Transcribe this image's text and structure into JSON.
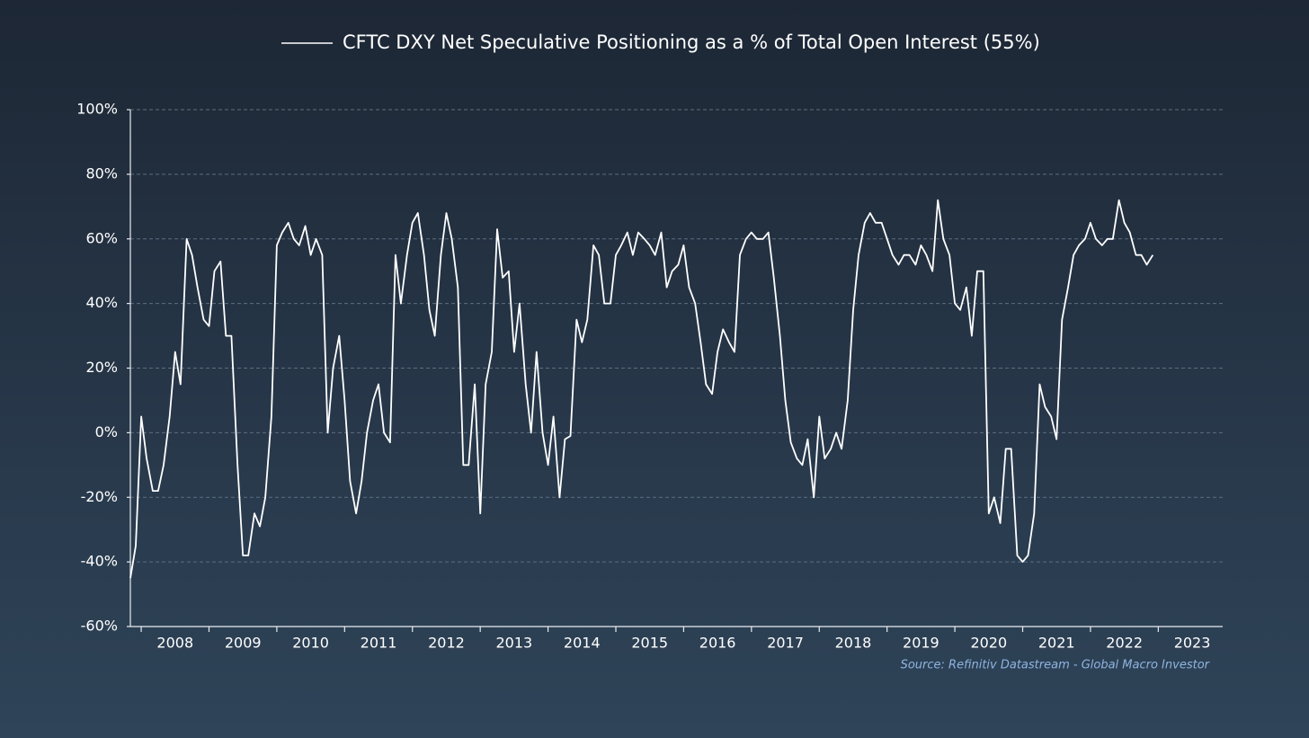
{
  "chart_data": {
    "type": "line",
    "series": [
      {
        "name": "CFTC DXY Net Speculative Positioning as a % of Total Open Interest (55%)",
        "color": "#ffffff",
        "values": [
          -45,
          -35,
          5,
          -8,
          -18,
          -18,
          -10,
          5,
          25,
          15,
          60,
          55,
          45,
          35,
          33,
          50,
          53,
          30,
          30,
          -10,
          -38,
          -38,
          -25,
          -29,
          -20,
          5,
          58,
          62,
          65,
          60,
          58,
          64,
          55,
          60,
          55,
          0,
          20,
          30,
          10,
          -15,
          -25,
          -15,
          0,
          10,
          15,
          0,
          -3,
          55,
          40,
          55,
          65,
          68,
          55,
          38,
          30,
          55,
          68,
          60,
          45,
          -10,
          -10,
          15,
          -25,
          15,
          25,
          63,
          48,
          50,
          25,
          40,
          15,
          0,
          25,
          0,
          -10,
          5,
          -20,
          -2,
          -1,
          35,
          28,
          35,
          58,
          55,
          40,
          40,
          55,
          58,
          62,
          55,
          62,
          60,
          58,
          55,
          62,
          45,
          50,
          52,
          58,
          45,
          40,
          28,
          15,
          12,
          25,
          32,
          28,
          25,
          55,
          60,
          62,
          60,
          60,
          62,
          48,
          30,
          10,
          -3,
          -8,
          -10,
          -2,
          -20,
          5,
          -8,
          -5,
          0,
          -5,
          10,
          38,
          55,
          65,
          68,
          65,
          65,
          60,
          55,
          52,
          55,
          55,
          52,
          58,
          55,
          50,
          72,
          60,
          55,
          40,
          38,
          45,
          30,
          50,
          50,
          -25,
          -20,
          -28,
          -5,
          -5,
          -38,
          -40,
          -38,
          -25,
          15,
          8,
          5,
          -2,
          35,
          45,
          55,
          58,
          60,
          65,
          60,
          58,
          60,
          60,
          72,
          65,
          62,
          55,
          55,
          52,
          55
        ]
      }
    ],
    "x": [
      2007.84,
      2007.92,
      2008.0,
      2008.08,
      2008.17,
      2008.25,
      2008.33,
      2008.42,
      2008.5,
      2008.58,
      2008.67,
      2008.75,
      2008.83,
      2008.92,
      2009.0,
      2009.08,
      2009.17,
      2009.25,
      2009.33,
      2009.42,
      2009.5,
      2009.58,
      2009.67,
      2009.75,
      2009.83,
      2009.92,
      2010.0,
      2010.08,
      2010.17,
      2010.25,
      2010.33,
      2010.42,
      2010.5,
      2010.58,
      2010.67,
      2010.75,
      2010.83,
      2010.92,
      2011.0,
      2011.08,
      2011.17,
      2011.25,
      2011.33,
      2011.42,
      2011.5,
      2011.58,
      2011.67,
      2011.75,
      2011.83,
      2011.92,
      2012.0,
      2012.08,
      2012.17,
      2012.25,
      2012.33,
      2012.42,
      2012.5,
      2012.58,
      2012.67,
      2012.75,
      2012.83,
      2012.92,
      2013.0,
      2013.08,
      2013.17,
      2013.25,
      2013.33,
      2013.42,
      2013.5,
      2013.58,
      2013.67,
      2013.75,
      2013.83,
      2013.92,
      2014.0,
      2014.08,
      2014.17,
      2014.25,
      2014.33,
      2014.42,
      2014.5,
      2014.58,
      2014.67,
      2014.75,
      2014.83,
      2014.92,
      2015.0,
      2015.08,
      2015.17,
      2015.25,
      2015.33,
      2015.42,
      2015.5,
      2015.58,
      2015.67,
      2015.75,
      2015.83,
      2015.92,
      2016.0,
      2016.08,
      2016.17,
      2016.25,
      2016.33,
      2016.42,
      2016.5,
      2016.58,
      2016.67,
      2016.75,
      2016.83,
      2016.92,
      2017.0,
      2017.08,
      2017.17,
      2017.25,
      2017.33,
      2017.42,
      2017.5,
      2017.58,
      2017.67,
      2017.75,
      2017.83,
      2017.92,
      2018.0,
      2018.08,
      2018.17,
      2018.25,
      2018.33,
      2018.42,
      2018.5,
      2018.58,
      2018.67,
      2018.75,
      2018.83,
      2018.92,
      2019.0,
      2019.08,
      2019.17,
      2019.25,
      2019.33,
      2019.42,
      2019.5,
      2019.58,
      2019.67,
      2019.75,
      2019.83,
      2019.92,
      2020.0,
      2020.08,
      2020.17,
      2020.25,
      2020.33,
      2020.42,
      2020.5,
      2020.58,
      2020.67,
      2020.75,
      2020.83,
      2020.92,
      2021.0,
      2021.08,
      2021.17,
      2021.25,
      2021.33,
      2021.42,
      2021.5,
      2021.58,
      2021.67,
      2021.75,
      2021.83,
      2021.92,
      2022.0,
      2022.08,
      2022.17,
      2022.25,
      2022.33,
      2022.42,
      2022.5,
      2022.58,
      2022.67,
      2022.75,
      2022.83,
      2022.92
    ],
    "xlim": [
      2007.84,
      2023.95
    ],
    "xticks": [
      {
        "value": 2008,
        "label": "2008"
      },
      {
        "value": 2009,
        "label": "2009"
      },
      {
        "value": 2010,
        "label": "2010"
      },
      {
        "value": 2011,
        "label": "2011"
      },
      {
        "value": 2012,
        "label": "2012"
      },
      {
        "value": 2013,
        "label": "2013"
      },
      {
        "value": 2014,
        "label": "2014"
      },
      {
        "value": 2015,
        "label": "2015"
      },
      {
        "value": 2016,
        "label": "2016"
      },
      {
        "value": 2017,
        "label": "2017"
      },
      {
        "value": 2018,
        "label": "2018"
      },
      {
        "value": 2019,
        "label": "2019"
      },
      {
        "value": 2020,
        "label": "2020"
      },
      {
        "value": 2021,
        "label": "2021"
      },
      {
        "value": 2022,
        "label": "2022"
      },
      {
        "value": 2023,
        "label": "2023"
      }
    ],
    "ylim": [
      -60,
      100
    ],
    "yticks": [
      {
        "value": -60,
        "label": "-60%"
      },
      {
        "value": -40,
        "label": "-40%"
      },
      {
        "value": -20,
        "label": "-20%"
      },
      {
        "value": 0,
        "label": "0%"
      },
      {
        "value": 20,
        "label": "20%"
      },
      {
        "value": 40,
        "label": "40%"
      },
      {
        "value": 60,
        "label": "60%"
      },
      {
        "value": 80,
        "label": "80%"
      },
      {
        "value": 100,
        "label": "100%"
      }
    ],
    "grid": true,
    "legend": "top",
    "source": "Source: Refinitiv Datastream - Global Macro Investor"
  }
}
